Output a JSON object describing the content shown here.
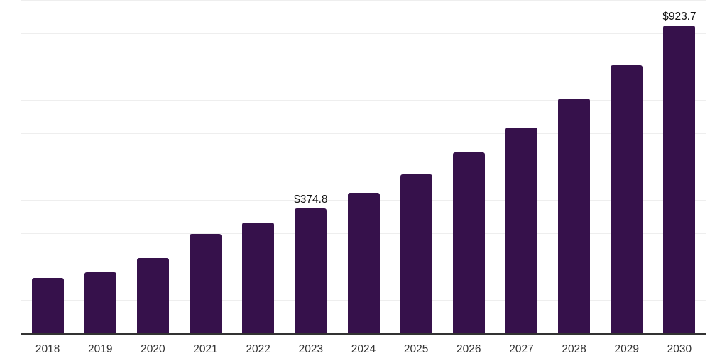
{
  "chart_data": {
    "type": "bar",
    "title": "",
    "xlabel": "",
    "ylabel": "",
    "categories": [
      "2018",
      "2019",
      "2020",
      "2021",
      "2022",
      "2023",
      "2024",
      "2025",
      "2026",
      "2027",
      "2028",
      "2029",
      "2030"
    ],
    "values": [
      166,
      184,
      226,
      297,
      333,
      374.8,
      421,
      476,
      542,
      616,
      704,
      804,
      923.7
    ],
    "data_labels": {
      "2023": "$374.8",
      "2030": "$923.7"
    },
    "ylim": [
      0,
      1000
    ],
    "gridline_step": 100,
    "grid": "horizontal",
    "legend": "none",
    "bar_color": "#36114B",
    "axis_color": "#333333",
    "gridline_color": "#eeeeee",
    "data_label_color": "#111111",
    "tick_label_color": "#333333",
    "background_color": "#ffffff"
  }
}
